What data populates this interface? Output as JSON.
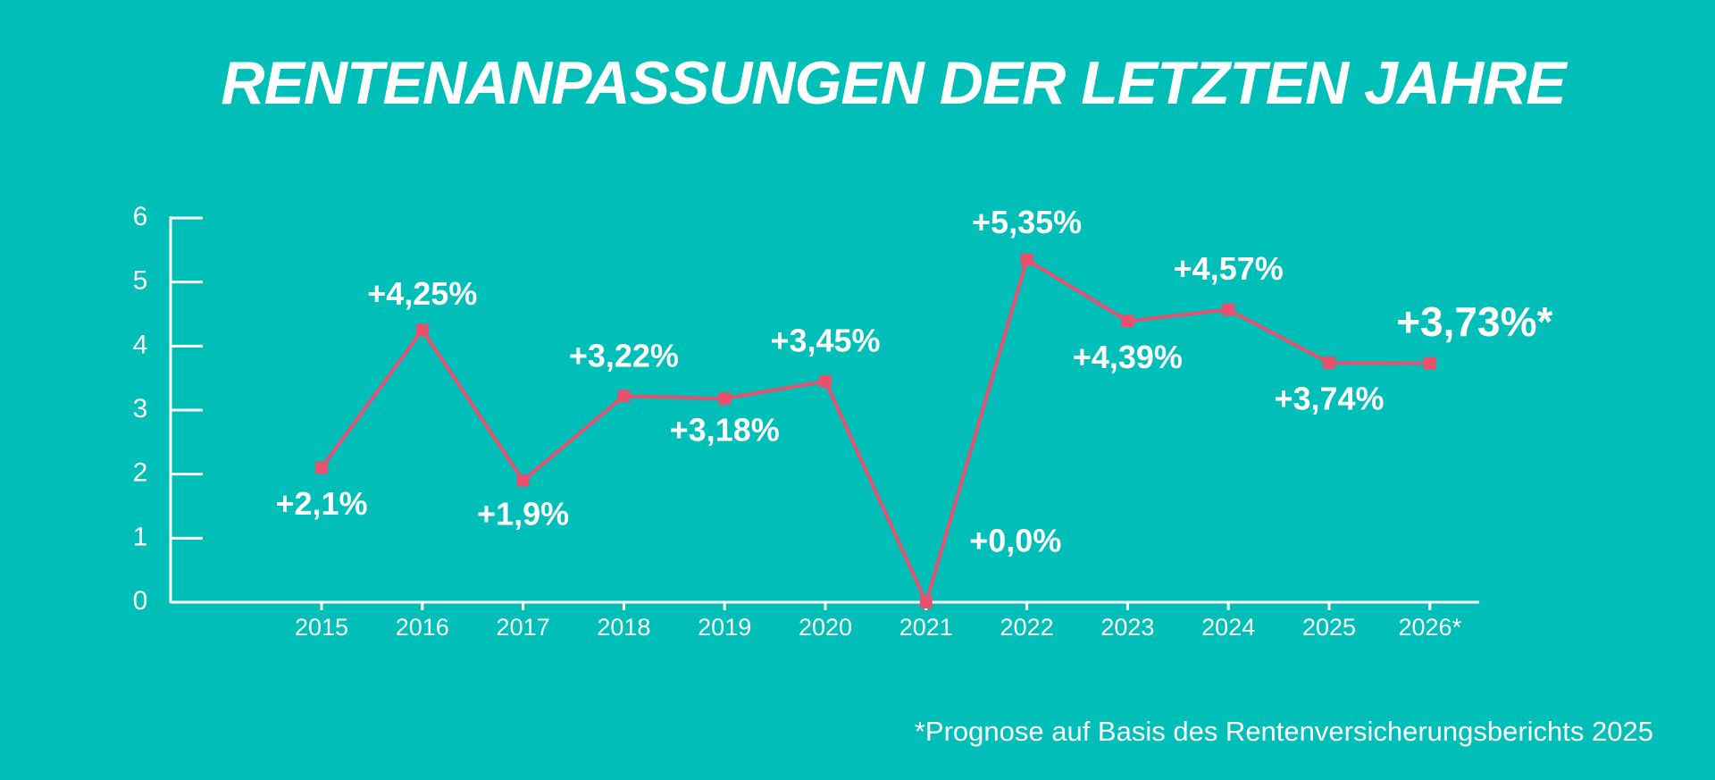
{
  "chart_data": {
    "type": "line",
    "title": "RENTENANPASSUNGEN DER LETZTEN JAHRE",
    "categories": [
      "2015",
      "2016",
      "2017",
      "2018",
      "2019",
      "2020",
      "2021",
      "2022",
      "2023",
      "2024",
      "2025",
      "2026*"
    ],
    "values": [
      2.1,
      4.25,
      1.9,
      3.22,
      3.18,
      3.45,
      0,
      5.35,
      4.39,
      4.57,
      3.74,
      3.73
    ],
    "value_labels": [
      "+2,1%",
      "+4,25%",
      "+1,9%",
      "+3,22%",
      "+3,18%",
      "+3,45%",
      "+0,0%",
      "+5,35%",
      "+4,39%",
      "+4,57%",
      "+3,74%",
      "+3,73%*"
    ],
    "color": "#e8506e",
    "ylim": [
      0,
      6
    ],
    "yticks": [
      0,
      1,
      2,
      3,
      4,
      5,
      6
    ],
    "grid": false,
    "footnote": "*Prognose auf Basis des Rentenversicherungsberichts 2025"
  }
}
